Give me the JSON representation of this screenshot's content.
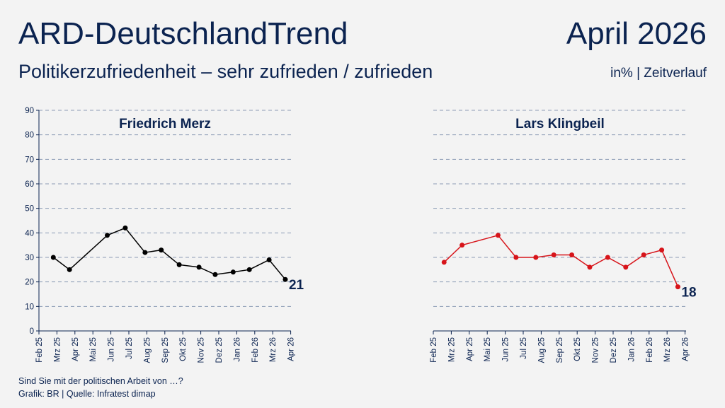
{
  "header": {
    "title": "ARD-DeutschlandTrend",
    "month": "April 2026",
    "subtitle": "Politikerzufriedenheit – sehr zufrieden / zufrieden",
    "unit": "in% | Zeitverlauf"
  },
  "footer": {
    "question": "Sind Sie mit der politischen Arbeit von …?",
    "source": "Grafik: BR | Quelle: Infratest dimap"
  },
  "chart_data": [
    {
      "type": "line",
      "title": "Friedrich Merz",
      "color": "#000000",
      "ylim": [
        0,
        90
      ],
      "yticks": [
        0,
        10,
        20,
        30,
        40,
        50,
        60,
        70,
        80,
        90
      ],
      "grid": true,
      "categories": [
        "Feb 25",
        "Mrz 25",
        "Apr 25",
        "Mai 25",
        "Jun 25",
        "Jul 25",
        "Aug 25",
        "Sep 25",
        "Okt 25",
        "Nov 25",
        "Dez 25",
        "Jan 26",
        "Feb 26",
        "Mrz 26",
        "Apr 26"
      ],
      "points": [
        {
          "x": 0.8,
          "y": 30
        },
        {
          "x": 1.7,
          "y": 25
        },
        {
          "x": 3.8,
          "y": 39
        },
        {
          "x": 4.8,
          "y": 42
        },
        {
          "x": 5.9,
          "y": 32
        },
        {
          "x": 6.8,
          "y": 33
        },
        {
          "x": 7.8,
          "y": 27
        },
        {
          "x": 8.9,
          "y": 26
        },
        {
          "x": 9.8,
          "y": 23
        },
        {
          "x": 10.8,
          "y": 24
        },
        {
          "x": 11.7,
          "y": 25
        },
        {
          "x": 12.8,
          "y": 29
        },
        {
          "x": 13.7,
          "y": 21
        }
      ],
      "end_label": "21"
    },
    {
      "type": "line",
      "title": "Lars Klingbeil",
      "color": "#d7141a",
      "ylim": [
        0,
        90
      ],
      "grid": true,
      "categories": [
        "Feb 25",
        "Mrz 25",
        "Apr 25",
        "Mai 25",
        "Jun 25",
        "Jul 25",
        "Aug 25",
        "Sep 25",
        "Okt 25",
        "Nov 25",
        "Dez 25",
        "Jan 26",
        "Feb 26",
        "Mrz 26",
        "Apr 26"
      ],
      "points": [
        {
          "x": 0.6,
          "y": 28
        },
        {
          "x": 1.6,
          "y": 35
        },
        {
          "x": 3.6,
          "y": 39
        },
        {
          "x": 4.6,
          "y": 30
        },
        {
          "x": 5.7,
          "y": 30
        },
        {
          "x": 6.7,
          "y": 31
        },
        {
          "x": 7.7,
          "y": 31
        },
        {
          "x": 8.7,
          "y": 26
        },
        {
          "x": 9.7,
          "y": 30
        },
        {
          "x": 10.7,
          "y": 26
        },
        {
          "x": 11.7,
          "y": 31
        },
        {
          "x": 12.7,
          "y": 33
        },
        {
          "x": 13.6,
          "y": 18
        }
      ],
      "end_label": "18"
    }
  ]
}
